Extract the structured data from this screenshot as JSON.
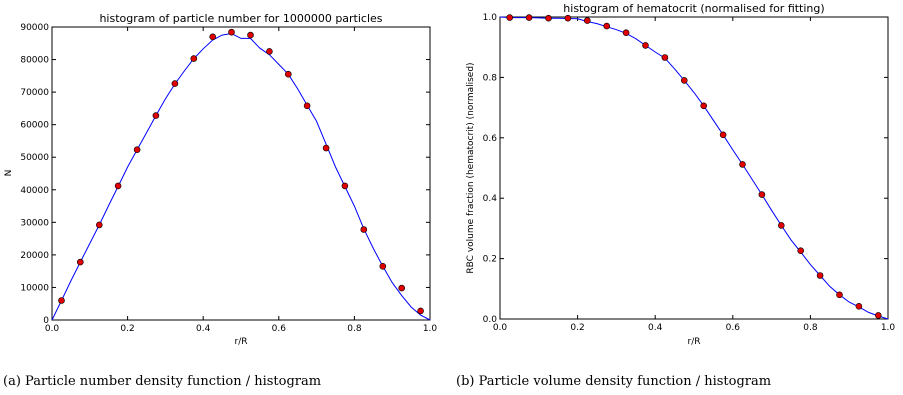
{
  "chart_data": [
    {
      "type": "line",
      "title": "histogram of particle number for 1000000 particles",
      "xlabel": "r/R",
      "ylabel": "N",
      "xlim": [
        0,
        1.0
      ],
      "ylim": [
        0,
        90000
      ],
      "xticks": [
        "0.0",
        "0.2",
        "0.4",
        "0.6",
        "0.8",
        "1.0"
      ],
      "yticks": [
        "0",
        "10000",
        "20000",
        "30000",
        "40000",
        "50000",
        "60000",
        "70000",
        "80000",
        "90000"
      ],
      "grid": false,
      "caption": "(a) Particle number density function / histogram",
      "series": [
        {
          "kind": "histogram-line",
          "color": "#0000ff",
          "x": [
            0.0,
            0.025,
            0.05,
            0.075,
            0.1,
            0.125,
            0.15,
            0.175,
            0.2,
            0.225,
            0.25,
            0.275,
            0.3,
            0.325,
            0.35,
            0.375,
            0.4,
            0.425,
            0.45,
            0.475,
            0.5,
            0.525,
            0.55,
            0.575,
            0.6,
            0.625,
            0.65,
            0.675,
            0.7,
            0.725,
            0.75,
            0.775,
            0.8,
            0.825,
            0.85,
            0.875,
            0.9,
            0.925,
            0.95,
            0.975,
            1.0
          ],
          "y": [
            0,
            6000,
            12000,
            17800,
            23500,
            29200,
            35200,
            41000,
            47000,
            52300,
            57500,
            62800,
            67900,
            72500,
            76500,
            80300,
            83300,
            86000,
            87500,
            88000,
            86500,
            86500,
            83500,
            81500,
            78500,
            75500,
            71000,
            66000,
            61000,
            54000,
            47000,
            41000,
            35000,
            28000,
            22000,
            16500,
            11500,
            7500,
            4000,
            1500,
            0
          ]
        },
        {
          "kind": "markers",
          "color": "#e00000",
          "x": [
            0.025,
            0.075,
            0.125,
            0.175,
            0.225,
            0.275,
            0.325,
            0.375,
            0.425,
            0.475,
            0.525,
            0.575,
            0.625,
            0.675,
            0.725,
            0.775,
            0.825,
            0.875,
            0.925,
            0.975
          ],
          "y": [
            6000,
            17800,
            29200,
            41200,
            52300,
            62800,
            72600,
            80300,
            87000,
            88400,
            87500,
            82500,
            75500,
            65800,
            52800,
            41200,
            27800,
            16500,
            9800,
            2800
          ]
        }
      ]
    },
    {
      "type": "line",
      "title": "histogram of hematocrit (normalised for fitting)",
      "xlabel": "r/R",
      "ylabel": "RBC volume fraction (hematocrit) (normalised)",
      "xlim": [
        0,
        1.0
      ],
      "ylim": [
        0,
        1.0
      ],
      "xticks": [
        "0.0",
        "0.2",
        "0.4",
        "0.6",
        "0.8",
        "1.0"
      ],
      "yticks": [
        "0.0",
        "0.2",
        "0.4",
        "0.6",
        "0.8",
        "1.0"
      ],
      "grid": false,
      "caption": "(b) Particle volume density function / histogram",
      "series": [
        {
          "kind": "histogram-line",
          "color": "#0000ff",
          "x": [
            0.0,
            0.025,
            0.05,
            0.075,
            0.1,
            0.125,
            0.15,
            0.175,
            0.2,
            0.225,
            0.25,
            0.275,
            0.3,
            0.325,
            0.35,
            0.375,
            0.4,
            0.425,
            0.45,
            0.475,
            0.5,
            0.525,
            0.55,
            0.575,
            0.6,
            0.625,
            0.65,
            0.675,
            0.7,
            0.725,
            0.75,
            0.775,
            0.8,
            0.825,
            0.85,
            0.875,
            0.9,
            0.925,
            0.95,
            0.975,
            1.0
          ],
          "y": [
            1.0,
            0.998,
            0.998,
            0.998,
            0.997,
            0.996,
            0.996,
            0.995,
            0.994,
            0.985,
            0.978,
            0.968,
            0.958,
            0.946,
            0.928,
            0.906,
            0.884,
            0.864,
            0.828,
            0.79,
            0.75,
            0.706,
            0.658,
            0.61,
            0.56,
            0.512,
            0.462,
            0.412,
            0.36,
            0.31,
            0.262,
            0.222,
            0.18,
            0.144,
            0.108,
            0.08,
            0.056,
            0.04,
            0.022,
            0.01,
            0.0
          ]
        },
        {
          "kind": "markers",
          "color": "#e00000",
          "x": [
            0.025,
            0.075,
            0.125,
            0.175,
            0.225,
            0.275,
            0.325,
            0.375,
            0.425,
            0.475,
            0.525,
            0.575,
            0.625,
            0.675,
            0.725,
            0.775,
            0.825,
            0.875,
            0.925,
            0.975
          ],
          "y": [
            0.998,
            0.998,
            0.996,
            0.996,
            0.988,
            0.97,
            0.948,
            0.906,
            0.866,
            0.79,
            0.706,
            0.61,
            0.512,
            0.412,
            0.31,
            0.226,
            0.144,
            0.08,
            0.042,
            0.012
          ]
        }
      ]
    }
  ]
}
